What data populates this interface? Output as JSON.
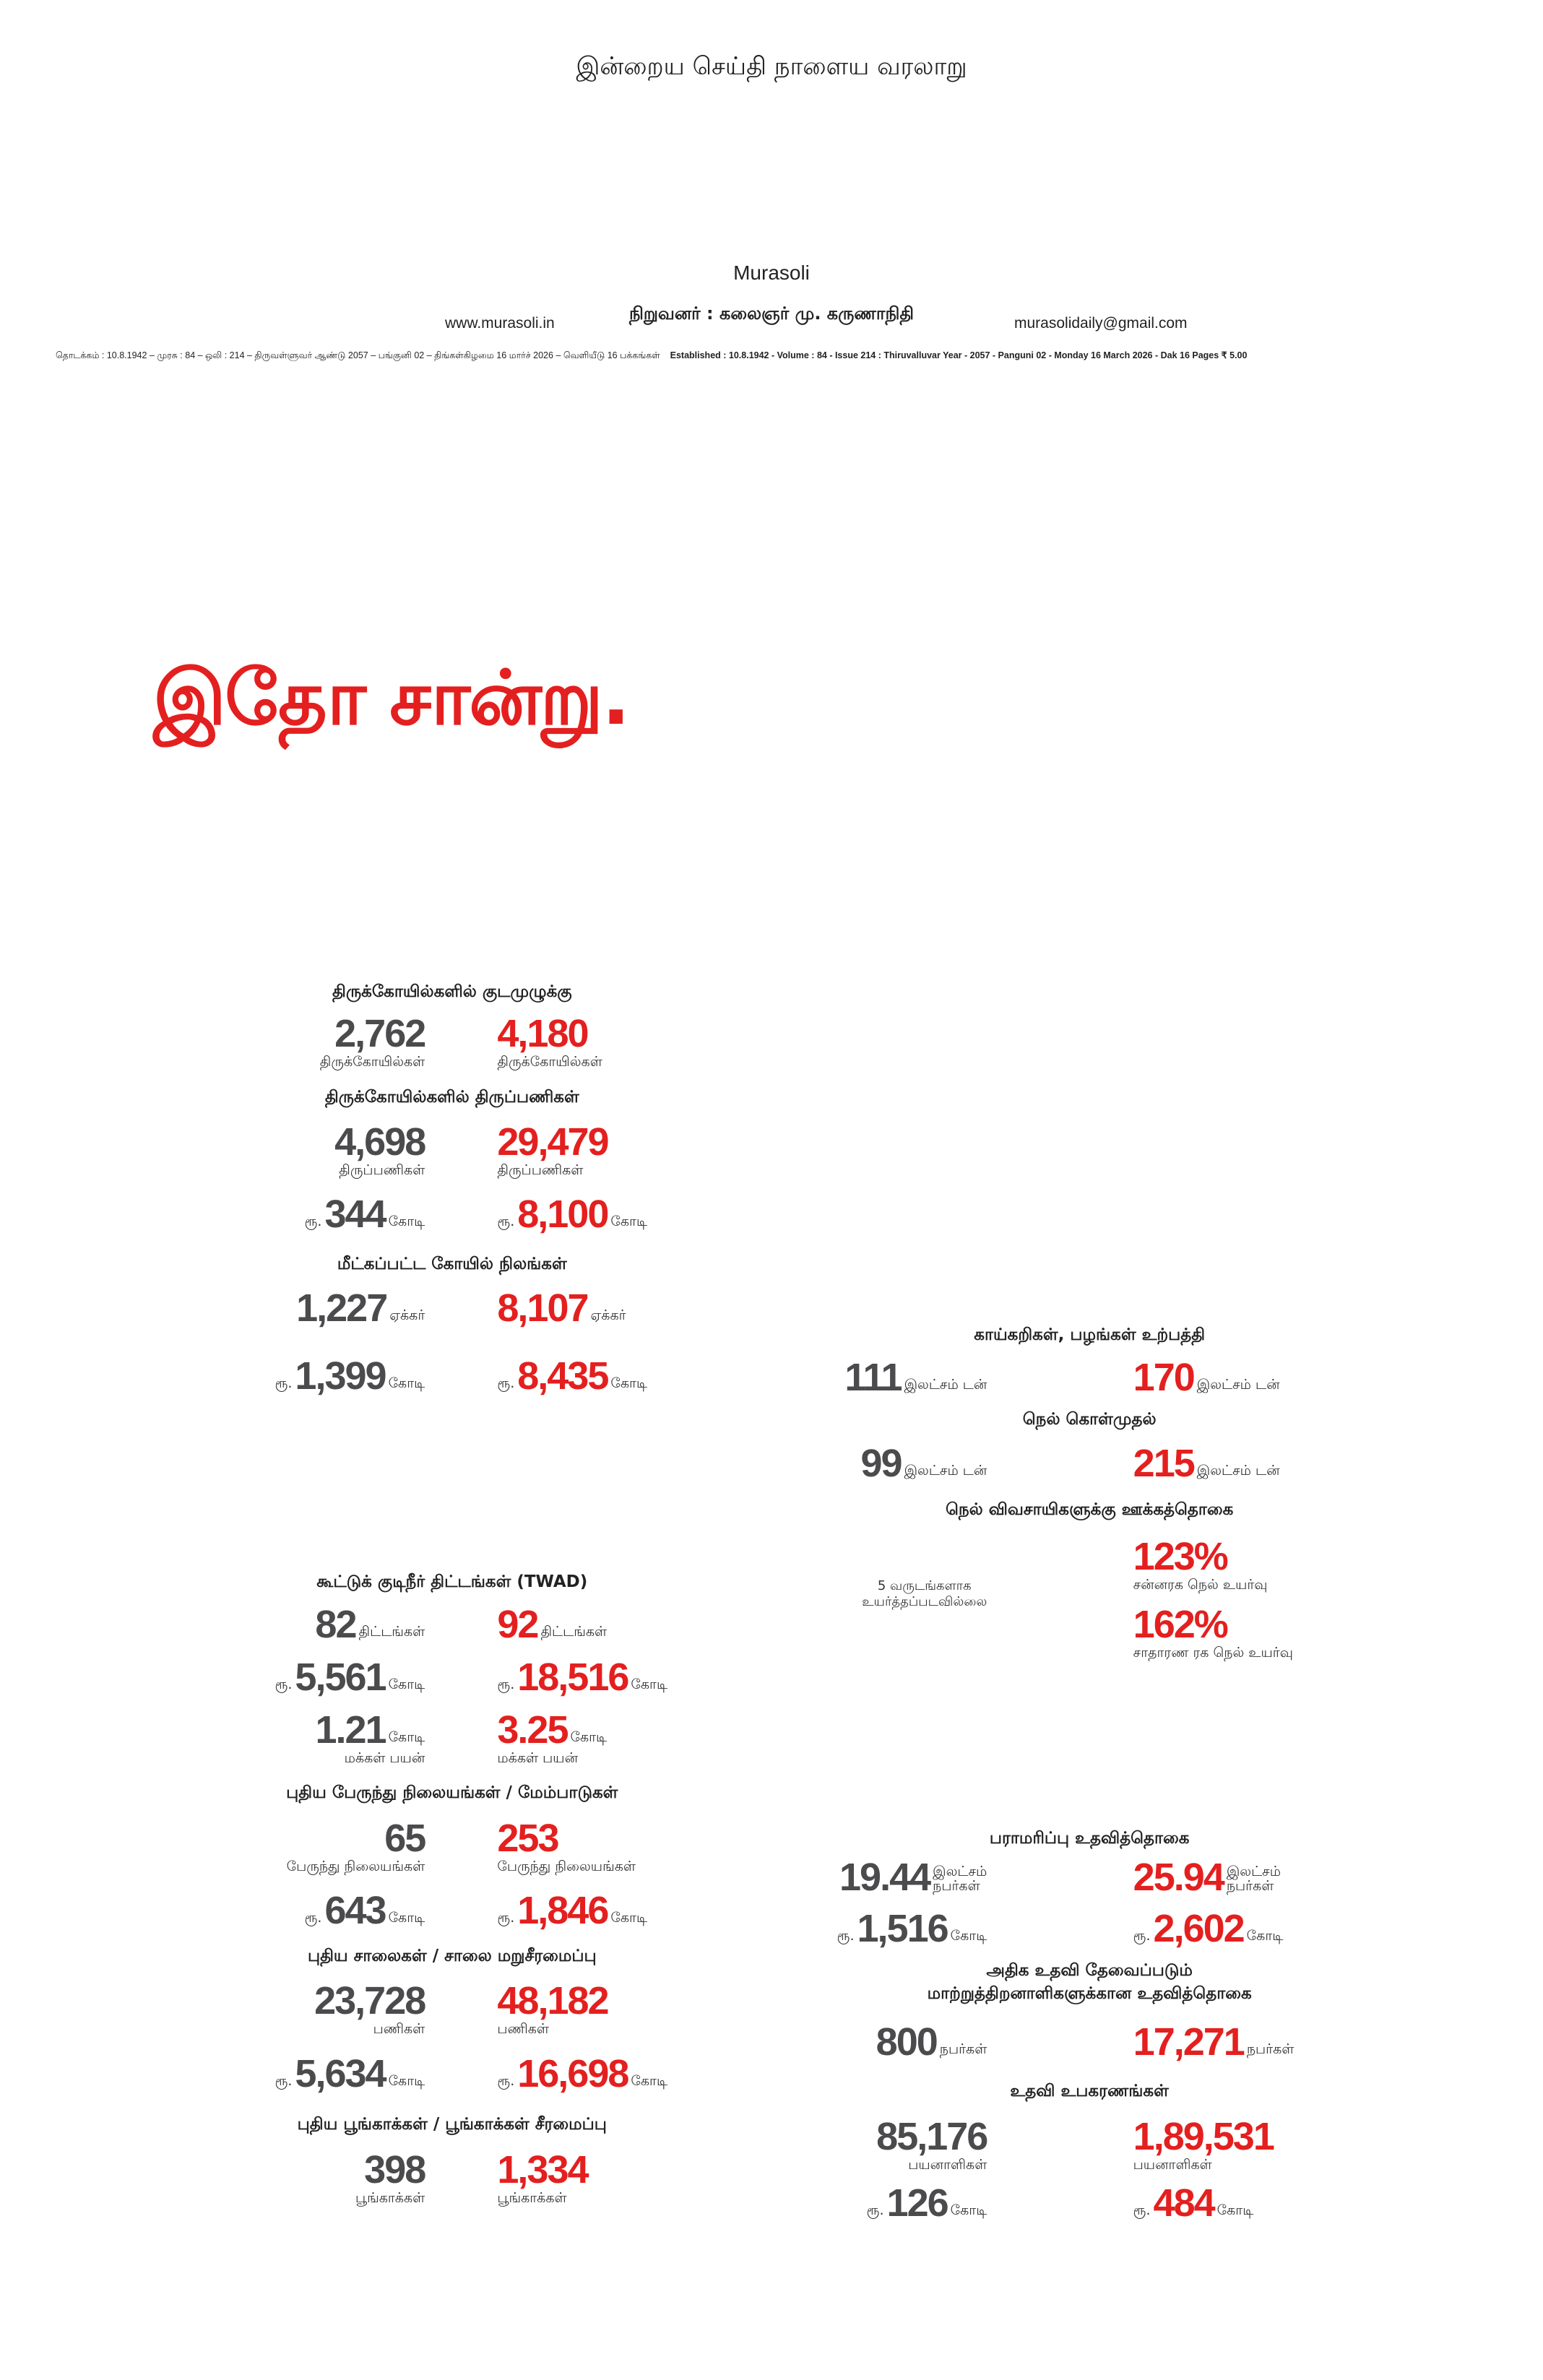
{
  "header": {
    "tagline": "இன்றைய செய்தி நாளைய வரலாறு",
    "name": "Murasoli",
    "founder": "நிறுவனர் : கலைஞர் மு. கருணாநிதி",
    "website": "www.murasoli.in",
    "email": "murasolidaily@gmail.com",
    "dateline_ta": "தொடக்கம் : 10.8.1942 – முரசு : 84 – ஒலி : 214 – திருவள்ளுவர் ஆண்டு 2057 – பங்குனி 02 – திங்கள்கிழமை 16 மார்ச் 2026 – வெளியீடு 16 பக்கங்கள்",
    "dateline_en": "Established : 10.8.1942 - Volume : 84 - Issue 214 : Thiruvalluvar Year - 2057 - Panguni 02 - Monday 16 March 2026 - Dak   16 Pages ₹ 5.00"
  },
  "headline": "இதோ சான்று.",
  "sections": [
    {
      "title": [
        "திருக்கோயில்களில் குடமுழுக்கு"
      ],
      "rows": [
        {
          "left": {
            "value": "2,762",
            "sub": "திருக்கோயில்கள்"
          },
          "right": {
            "value": "4,180",
            "sub": "திருக்கோயில்கள்"
          }
        }
      ]
    },
    {
      "title": [
        "திருக்கோயில்களில் திருப்பணிகள்"
      ],
      "rows": [
        {
          "left": {
            "value": "4,698",
            "sub": "திருப்பணிகள்"
          },
          "right": {
            "value": "29,479",
            "sub": "திருப்பணிகள்"
          }
        },
        {
          "left": {
            "prefix": "ரூ.",
            "value": "344",
            "unit": "கோடி"
          },
          "right": {
            "prefix": "ரூ.",
            "value": "8,100",
            "unit": "கோடி"
          }
        }
      ]
    },
    {
      "title": [
        "மீட்கப்பட்ட கோயில் நிலங்கள்"
      ],
      "rows": [
        {
          "left": {
            "value": "1,227",
            "unit": "ஏக்கர்"
          },
          "right": {
            "value": "8,107",
            "unit": "ஏக்கர்"
          }
        },
        {
          "left": {
            "prefix": "ரூ.",
            "value": "1,399",
            "unit": "கோடி"
          },
          "right": {
            "prefix": "ரூ.",
            "value": "8,435",
            "unit": "கோடி"
          }
        }
      ]
    },
    {
      "title": [
        "கூட்டுக் குடிநீர் திட்டங்கள் (TWAD)"
      ],
      "rows": [
        {
          "left": {
            "value": "82",
            "unit": "திட்டங்கள்"
          },
          "right": {
            "value": "92",
            "unit": "திட்டங்கள்"
          }
        },
        {
          "left": {
            "prefix": "ரூ.",
            "value": "5,561",
            "unit": "கோடி"
          },
          "right": {
            "prefix": "ரூ.",
            "value": "18,516",
            "unit": "கோடி"
          }
        },
        {
          "left": {
            "value": "1.21",
            "unit": "கோடி",
            "sub": "மக்கள் பயன்"
          },
          "right": {
            "value": "3.25",
            "unit": "கோடி",
            "sub": "மக்கள் பயன்"
          }
        }
      ]
    },
    {
      "title": [
        "புதிய பேருந்து நிலையங்கள் / மேம்பாடுகள்"
      ],
      "rows": [
        {
          "left": {
            "value": "65",
            "sub": "பேருந்து நிலையங்கள்"
          },
          "right": {
            "value": "253",
            "sub": "பேருந்து நிலையங்கள்"
          }
        },
        {
          "left": {
            "prefix": "ரூ.",
            "value": "643",
            "unit": "கோடி"
          },
          "right": {
            "prefix": "ரூ.",
            "value": "1,846",
            "unit": "கோடி"
          }
        }
      ]
    },
    {
      "title": [
        "புதிய சாலைகள் / சாலை மறுசீரமைப்பு"
      ],
      "rows": [
        {
          "left": {
            "value": "23,728",
            "sub": "பணிகள்"
          },
          "right": {
            "value": "48,182",
            "sub": "பணிகள்"
          }
        },
        {
          "left": {
            "prefix": "ரூ.",
            "value": "5,634",
            "unit": "கோடி"
          },
          "right": {
            "prefix": "ரூ.",
            "value": "16,698",
            "unit": "கோடி"
          }
        }
      ]
    },
    {
      "title": [
        "புதிய பூங்காக்கள் / பூங்காக்கள் சீரமைப்பு"
      ],
      "rows": [
        {
          "left": {
            "value": "398",
            "sub": "பூங்காக்கள்"
          },
          "right": {
            "value": "1,334",
            "sub": "பூங்காக்கள்"
          }
        }
      ]
    },
    {
      "title": [
        "காய்கறிகள், பழங்கள் உற்பத்தி"
      ],
      "rows": [
        {
          "left": {
            "value": "111",
            "unit": "இலட்சம் டன்"
          },
          "right": {
            "value": "170",
            "unit": "இலட்சம் டன்"
          }
        }
      ]
    },
    {
      "title": [
        "நெல் கொள்முதல்"
      ],
      "rows": [
        {
          "left": {
            "value": "99",
            "unit": "இலட்சம் டன்"
          },
          "right": {
            "value": "215",
            "unit": "இலட்சம் டன்"
          }
        }
      ]
    },
    {
      "title": [
        "நெல் விவசாயிகளுக்கு ஊக்கத்தொகை"
      ],
      "rows": [
        {
          "left": {
            "note": [
              "5 வருடங்களாக",
              "உயர்த்தப்படவில்லை"
            ]
          },
          "right": {
            "value": "123%",
            "sub": "சன்னரக நெல் உயர்வு"
          }
        },
        {
          "right": {
            "value": "162%",
            "sub": "சாதாரண ரக நெல் உயர்வு"
          }
        }
      ]
    },
    {
      "title": [
        "பராமரிப்பு உதவித்தொகை"
      ],
      "rows": [
        {
          "left": {
            "value": "19.44",
            "unit": [
              "இலட்சம்",
              "நபர்கள்"
            ]
          },
          "right": {
            "value": "25.94",
            "unit": [
              "இலட்சம்",
              "நபர்கள்"
            ]
          }
        },
        {
          "left": {
            "prefix": "ரூ.",
            "value": "1,516",
            "unit": "கோடி"
          },
          "right": {
            "prefix": "ரூ.",
            "value": "2,602",
            "unit": "கோடி"
          }
        }
      ]
    },
    {
      "title": [
        "அதிக உதவி தேவைப்படும்",
        "மாற்றுத்திறனாளிகளுக்கான உதவித்தொகை"
      ],
      "rows": [
        {
          "left": {
            "value": "800",
            "unit": "நபர்கள்"
          },
          "right": {
            "value": "17,271",
            "unit": "நபர்கள்"
          }
        }
      ]
    },
    {
      "title": [
        "உதவி உபகரணங்கள்"
      ],
      "rows": [
        {
          "left": {
            "value": "85,176",
            "sub": "பயனாளிகள்"
          },
          "right": {
            "value": "1,89,531",
            "sub": "பயனாளிகள்"
          }
        },
        {
          "left": {
            "prefix": "ரூ.",
            "value": "126",
            "unit": "கோடி"
          },
          "right": {
            "prefix": "ரூ.",
            "value": "484",
            "unit": "கோடி"
          }
        }
      ]
    }
  ]
}
